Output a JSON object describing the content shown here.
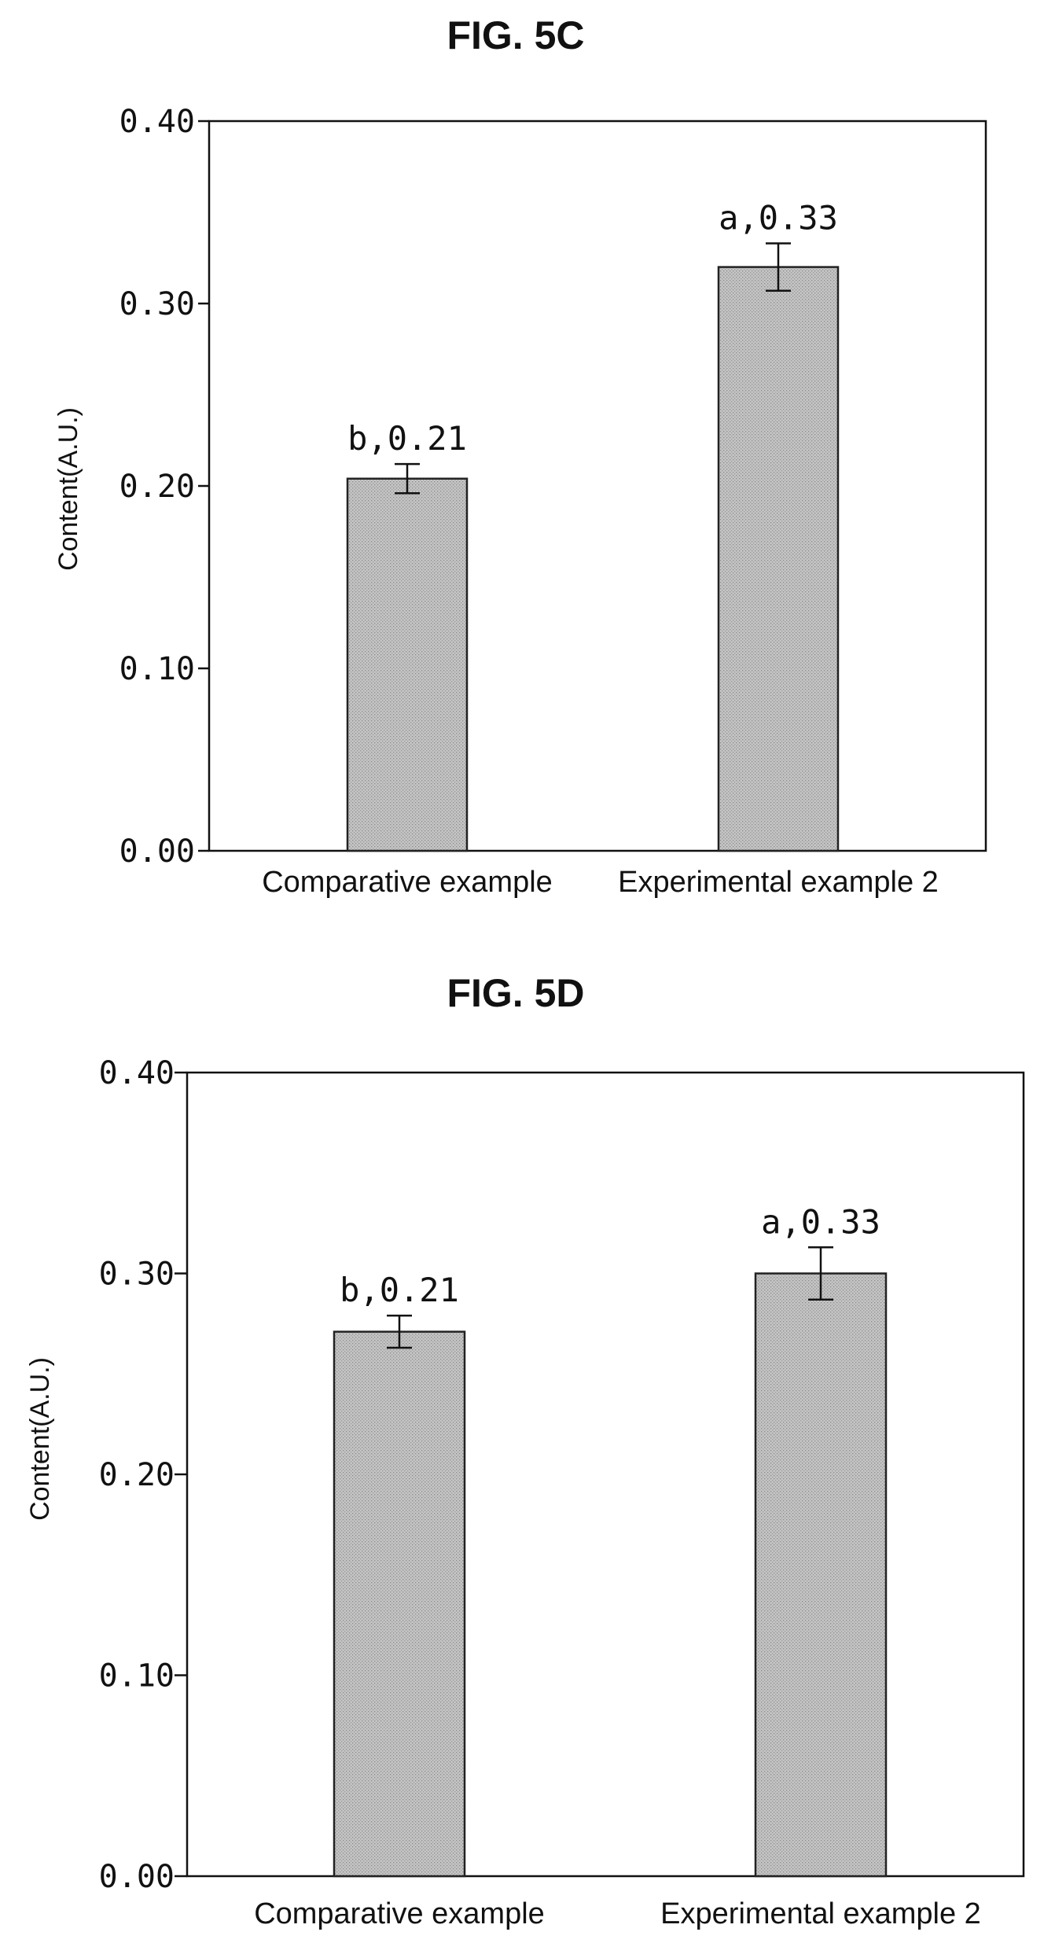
{
  "chart_data": [
    {
      "type": "bar",
      "title": "FIG. 5C",
      "ylabel": "Content(A.U.)",
      "xlabel": "",
      "ylim": [
        0,
        0.4
      ],
      "yticks": [
        "0.00",
        "0.10",
        "0.20",
        "0.30",
        "0.40"
      ],
      "categories": [
        "Comparative example",
        "Experimental example 2"
      ],
      "values": [
        0.204,
        0.32
      ],
      "error": [
        0.008,
        0.013
      ],
      "data_labels": [
        "b,0.21",
        "a,0.33"
      ],
      "grid": false,
      "bar_color": "#bdbdbd"
    },
    {
      "type": "bar",
      "title": "FIG. 5D",
      "ylabel": "Content(A.U.)",
      "xlabel": "",
      "ylim": [
        0,
        0.4
      ],
      "yticks": [
        "0.00",
        "0.10",
        "0.20",
        "0.30",
        "0.40"
      ],
      "categories": [
        "Comparative example",
        "Experimental example 2"
      ],
      "values": [
        0.271,
        0.3
      ],
      "error": [
        0.008,
        0.013
      ],
      "data_labels": [
        "b,0.21",
        "a,0.33"
      ],
      "grid": false,
      "bar_color": "#bdbdbd"
    }
  ]
}
